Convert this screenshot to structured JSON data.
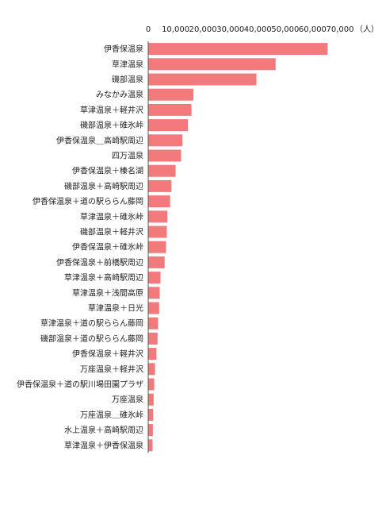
{
  "chart_data": {
    "type": "bar",
    "orientation": "horizontal",
    "unit_label": "（人）",
    "xlim": [
      0,
      70000
    ],
    "ticks": [
      0,
      10000,
      20000,
      30000,
      40000,
      50000,
      60000,
      70000
    ],
    "tick_labels": [
      "0",
      "10,000",
      "20,000",
      "30,000",
      "40,000",
      "50,000",
      "60,000",
      "70,000"
    ],
    "grid": false,
    "bar_color": "#f27a7d",
    "categories": [
      "伊香保温泉",
      "草津温泉",
      "磯部温泉",
      "みなかみ温泉",
      "草津温泉＋軽井沢",
      "磯部温泉＋碓氷峠",
      "伊香保温泉＿高崎駅周辺",
      "四万温泉",
      "伊香保温泉＋榛名湖",
      "磯部温泉＋高崎駅周辺",
      "伊香保温泉＋道の駅ららん藤岡",
      "草津温泉＋碓氷峠",
      "磯部温泉＋軽井沢",
      "伊香保温泉＋碓氷峠",
      "伊香保温泉＋前橋駅周辺",
      "草津温泉＋高崎駅周辺",
      "草津温泉＋浅間高原",
      "草津温泉＋日光",
      "草津温泉＋道の駅ららん藤岡",
      "磯部温泉＋道の駅ららん藤岡",
      "伊香保温泉＋軽井沢",
      "万座温泉＋軽井沢",
      "伊香保温泉＋道の駅川場田園プラザ",
      "万座温泉",
      "万座温泉＿碓氷峠",
      "水上温泉＋高崎駅周辺",
      "草津温泉＋伊香保温泉"
    ],
    "values": [
      65500,
      46500,
      39500,
      16500,
      15800,
      14500,
      12500,
      12000,
      10000,
      8500,
      8000,
      7000,
      6800,
      6500,
      6000,
      4500,
      4200,
      4000,
      3600,
      3400,
      3000,
      2500,
      2200,
      2000,
      1800,
      1700,
      1600
    ]
  }
}
